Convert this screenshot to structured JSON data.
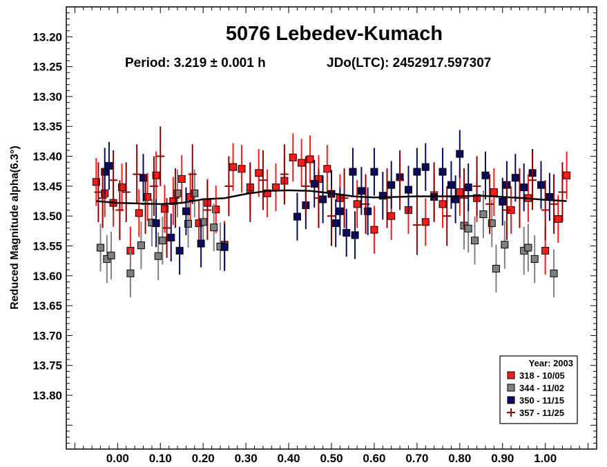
{
  "chart_data": {
    "type": "scatter",
    "title": "5076 Lebedev-Kumach",
    "subtitle_period": "Period: 3.219 ± 0.001 h",
    "subtitle_epoch": "JDo(LTC): 2452917.597307",
    "xlabel": "",
    "ylabel": "Reduced Magnitude alpha(6.3°)",
    "xlim": [
      -0.12,
      1.12
    ],
    "ylim": [
      13.15,
      13.89
    ],
    "y_inverted": true,
    "x_ticks": [
      "0.00",
      "0.10",
      "0.20",
      "0.30",
      "0.40",
      "0.50",
      "0.60",
      "0.70",
      "0.80",
      "0.90",
      "1.00"
    ],
    "x_tick_values": [
      0,
      0.1,
      0.2,
      0.3,
      0.4,
      0.5,
      0.6,
      0.7,
      0.8,
      0.9,
      1.0
    ],
    "y_ticks": [
      "13.20",
      "13.25",
      "13.30",
      "13.35",
      "13.40",
      "13.45",
      "13.50",
      "13.55",
      "13.60",
      "13.65",
      "13.70",
      "13.75",
      "13.80"
    ],
    "y_tick_values": [
      13.2,
      13.25,
      13.3,
      13.35,
      13.4,
      13.45,
      13.5,
      13.55,
      13.6,
      13.65,
      13.7,
      13.75,
      13.8
    ],
    "grid": false,
    "legend_placement": "bottom-right",
    "legend_title": "Year: 2003",
    "fit_curve": {
      "x": [
        -0.05,
        0.0,
        0.05,
        0.1,
        0.15,
        0.2,
        0.25,
        0.3,
        0.35,
        0.4,
        0.45,
        0.5,
        0.55,
        0.6,
        0.65,
        0.7,
        0.75,
        0.8,
        0.85,
        0.9,
        0.95,
        1.0,
        1.05
      ],
      "y": [
        13.475,
        13.478,
        13.479,
        13.48,
        13.478,
        13.472,
        13.47,
        13.463,
        13.458,
        13.457,
        13.458,
        13.462,
        13.467,
        13.469,
        13.468,
        13.467,
        13.467,
        13.467,
        13.466,
        13.468,
        13.47,
        13.473,
        13.475
      ],
      "color": "#000000"
    },
    "series": [
      {
        "name": "318 - 10/05",
        "marker": "square",
        "fill": "#ff1a1a",
        "stroke": "#000000",
        "err_color": "#ff1a1a",
        "err": 0.04,
        "x": [
          -0.05,
          -0.03,
          -0.01,
          0.01,
          0.03,
          0.05,
          0.07,
          0.09,
          0.11,
          0.13,
          0.15,
          0.17,
          0.19,
          0.21,
          0.23,
          0.25,
          0.27,
          0.29,
          0.31,
          0.33,
          0.35,
          0.37,
          0.39,
          0.41,
          0.43,
          0.45,
          0.47,
          0.49,
          0.52,
          0.56,
          0.6,
          0.64,
          0.68,
          0.72,
          0.76,
          0.8,
          0.84,
          0.88,
          0.92,
          0.96,
          1.0,
          1.03,
          1.05
        ],
        "y": [
          13.443,
          13.462,
          13.478,
          13.452,
          13.558,
          13.495,
          13.468,
          13.432,
          13.488,
          13.475,
          13.438,
          13.468,
          13.512,
          13.478,
          13.489,
          13.548,
          13.418,
          13.421,
          13.452,
          13.428,
          13.462,
          13.452,
          13.441,
          13.402,
          13.411,
          13.405,
          13.438,
          13.421,
          13.47,
          13.48,
          13.523,
          13.5,
          13.49,
          13.51,
          13.48,
          13.46,
          13.47,
          13.46,
          13.49,
          13.47,
          13.558,
          13.505,
          13.432
        ]
      },
      {
        "name": "344 - 11/02",
        "marker": "square",
        "fill": "#808080",
        "stroke": "#000000",
        "err_color": "#808080",
        "err": 0.04,
        "x": [
          -0.04,
          -0.025,
          -0.015,
          0.03,
          0.055,
          0.08,
          0.095,
          0.105,
          0.14,
          0.165,
          0.18,
          0.2,
          0.225,
          0.24,
          0.81,
          0.82,
          0.835,
          0.855,
          0.875,
          0.885,
          0.905,
          0.95,
          0.96,
          0.975,
          1.02
        ],
        "y": [
          13.553,
          13.572,
          13.566,
          13.596,
          13.549,
          13.511,
          13.567,
          13.541,
          13.462,
          13.513,
          13.462,
          13.51,
          13.519,
          13.551,
          13.516,
          13.521,
          13.541,
          13.497,
          13.512,
          13.588,
          13.548,
          13.558,
          13.553,
          13.572,
          13.596
        ]
      },
      {
        "name": "350 - 11/15",
        "marker": "square",
        "fill": "#0a0a5e",
        "stroke": "#000000",
        "err_color": "#0a0a5e",
        "err": 0.04,
        "x": [
          -0.03,
          -0.02,
          0.06,
          0.09,
          0.125,
          0.145,
          0.16,
          0.195,
          0.25,
          0.42,
          0.44,
          0.46,
          0.48,
          0.5,
          0.51,
          0.52,
          0.535,
          0.55,
          0.555,
          0.57,
          0.585,
          0.6,
          0.62,
          0.64,
          0.66,
          0.68,
          0.7,
          0.72,
          0.74,
          0.76,
          0.78,
          0.79,
          0.8,
          0.82,
          0.86,
          0.9,
          0.91,
          0.93,
          0.95,
          0.97,
          0.99,
          1.01
        ],
        "y": [
          13.426,
          13.416,
          13.436,
          13.512,
          13.536,
          13.558,
          13.492,
          13.546,
          13.552,
          13.501,
          13.482,
          13.446,
          13.472,
          13.463,
          13.512,
          13.492,
          13.528,
          13.426,
          13.532,
          13.458,
          13.492,
          13.426,
          13.466,
          13.448,
          13.435,
          13.456,
          13.426,
          13.418,
          13.468,
          13.426,
          13.448,
          13.472,
          13.396,
          13.452,
          13.432,
          13.476,
          13.448,
          13.436,
          13.452,
          13.428,
          13.448,
          13.468
        ]
      },
      {
        "name": "357 - 11/25",
        "marker": "plus",
        "fill": "#8b0000",
        "stroke": "#8b0000",
        "err_color": "#8b0000",
        "err": 0.05,
        "x": [
          -0.045,
          -0.035,
          -0.01,
          0.005,
          0.02,
          0.045,
          0.065,
          0.085,
          0.1,
          0.115,
          0.135,
          0.175,
          0.21,
          0.26,
          0.31,
          0.34,
          0.39,
          0.44,
          0.47,
          0.5,
          0.53,
          0.58,
          0.63,
          0.66,
          0.7,
          0.74,
          0.77,
          0.81,
          0.84,
          0.87,
          0.91,
          0.94,
          0.97,
          1.0,
          1.02,
          1.04
        ],
        "y": [
          13.46,
          13.47,
          13.44,
          13.49,
          13.46,
          13.43,
          13.48,
          13.45,
          13.4,
          13.52,
          13.47,
          13.43,
          13.49,
          13.45,
          13.46,
          13.44,
          13.43,
          13.45,
          13.47,
          13.5,
          13.47,
          13.48,
          13.47,
          13.44,
          13.515,
          13.46,
          13.5,
          13.47,
          13.45,
          13.48,
          13.49,
          13.47,
          13.44,
          13.49,
          13.48,
          13.46
        ]
      }
    ]
  }
}
